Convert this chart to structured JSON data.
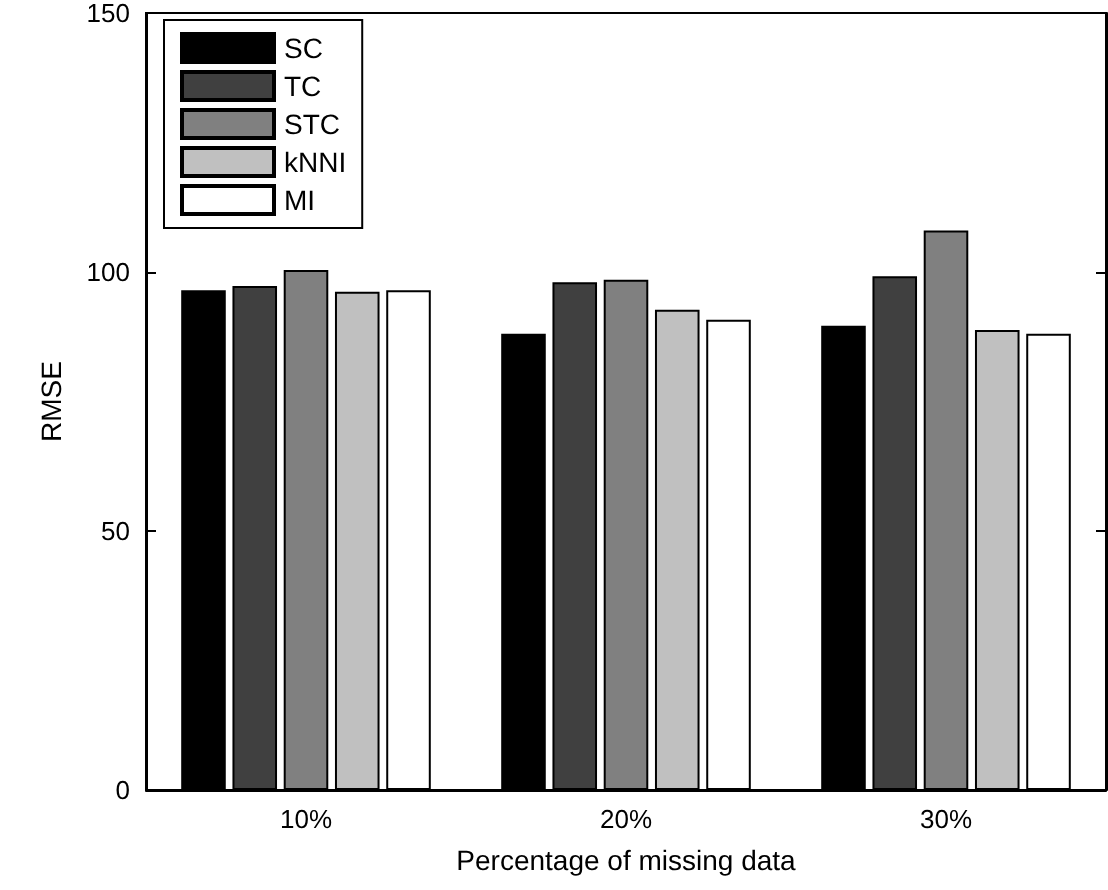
{
  "chart_data": {
    "type": "bar",
    "xlabel": "Percentage of missing data",
    "ylabel": "RMSE",
    "categories": [
      "10%",
      "20%",
      "30%"
    ],
    "series": [
      {
        "name": "SC",
        "color": "#000000",
        "values": [
          96.5,
          88.1,
          89.6
        ]
      },
      {
        "name": "TC",
        "color": "#404040",
        "values": [
          97.3,
          98.0,
          99.2
        ]
      },
      {
        "name": "STC",
        "color": "#808080",
        "values": [
          100.4,
          98.5,
          108.0
        ]
      },
      {
        "name": "kNNI",
        "color": "#c0c0c0",
        "values": [
          96.2,
          92.7,
          88.8
        ]
      },
      {
        "name": "MI",
        "color": "#ffffff",
        "values": [
          96.5,
          90.8,
          88.1
        ]
      }
    ],
    "ylim": [
      0,
      150
    ],
    "yticks": [
      0,
      50,
      100,
      150
    ],
    "grid": false,
    "legend": "top left"
  }
}
